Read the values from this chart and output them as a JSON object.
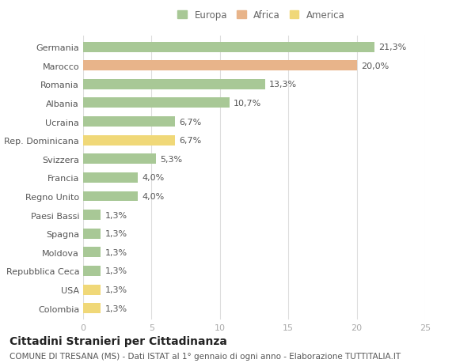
{
  "categories": [
    "Germania",
    "Marocco",
    "Romania",
    "Albania",
    "Ucraina",
    "Rep. Dominicana",
    "Svizzera",
    "Francia",
    "Regno Unito",
    "Paesi Bassi",
    "Spagna",
    "Moldova",
    "Repubblica Ceca",
    "USA",
    "Colombia"
  ],
  "values": [
    21.3,
    20.0,
    13.3,
    10.7,
    6.7,
    6.7,
    5.3,
    4.0,
    4.0,
    1.3,
    1.3,
    1.3,
    1.3,
    1.3,
    1.3
  ],
  "labels": [
    "21,3%",
    "20,0%",
    "13,3%",
    "10,7%",
    "6,7%",
    "6,7%",
    "5,3%",
    "4,0%",
    "4,0%",
    "1,3%",
    "1,3%",
    "1,3%",
    "1,3%",
    "1,3%",
    "1,3%"
  ],
  "colors": [
    "#a8c896",
    "#e8b48a",
    "#a8c896",
    "#a8c896",
    "#a8c896",
    "#f0d878",
    "#a8c896",
    "#a8c896",
    "#a8c896",
    "#a8c896",
    "#a8c896",
    "#a8c896",
    "#a8c896",
    "#f0d878",
    "#f0d878"
  ],
  "legend_labels": [
    "Europa",
    "Africa",
    "America"
  ],
  "legend_colors": [
    "#a8c896",
    "#e8b48a",
    "#f0d878"
  ],
  "title": "Cittadini Stranieri per Cittadinanza",
  "subtitle": "COMUNE DI TRESANA (MS) - Dati ISTAT al 1° gennaio di ogni anno - Elaborazione TUTTITALIA.IT",
  "xlim": [
    0,
    25
  ],
  "xticks": [
    0,
    5,
    10,
    15,
    20,
    25
  ],
  "background_color": "#ffffff",
  "bar_height": 0.55,
  "title_fontsize": 10,
  "subtitle_fontsize": 7.5,
  "label_fontsize": 8,
  "tick_fontsize": 8,
  "legend_fontsize": 8.5
}
